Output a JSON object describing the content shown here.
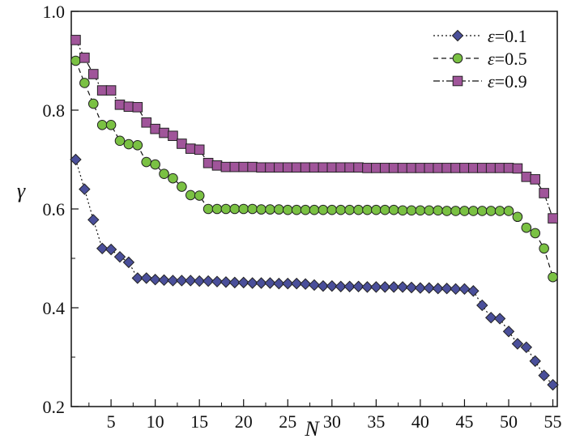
{
  "chart_data": {
    "type": "line",
    "title": "",
    "xlabel": "N",
    "ylabel": "γ",
    "xlim": [
      0.5,
      55.5
    ],
    "ylim": [
      0.2,
      1.0
    ],
    "xticks": [
      5,
      10,
      15,
      20,
      25,
      30,
      35,
      40,
      45,
      50,
      55
    ],
    "xtick_labels": [
      "5",
      "10",
      "15",
      "20",
      "25",
      "30",
      "35",
      "40",
      "45",
      "50",
      "55"
    ],
    "yticks": [
      0.2,
      0.4,
      0.6,
      0.8,
      1.0
    ],
    "ytick_labels": [
      "0.2",
      "0.4",
      "0.6",
      "0.8",
      "1.0"
    ],
    "grid": false,
    "legend_position": "top-right",
    "x": [
      1,
      2,
      3,
      4,
      5,
      6,
      7,
      8,
      9,
      10,
      11,
      12,
      13,
      14,
      15,
      16,
      17,
      18,
      19,
      20,
      21,
      22,
      23,
      24,
      25,
      26,
      27,
      28,
      29,
      30,
      31,
      32,
      33,
      34,
      35,
      36,
      37,
      38,
      39,
      40,
      41,
      42,
      43,
      44,
      45,
      46,
      47,
      48,
      49,
      50,
      51,
      52,
      53,
      54,
      55
    ],
    "series": [
      {
        "name": "ε=0.1",
        "legend_prefix": "ε",
        "legend_suffix": "=0.1",
        "marker": "diamond",
        "line_style": "dotted",
        "color": "#4a4f9a",
        "values": [
          0.7,
          0.64,
          0.578,
          0.52,
          0.518,
          0.503,
          0.492,
          0.46,
          0.46,
          0.457,
          0.456,
          0.455,
          0.455,
          0.455,
          0.454,
          0.454,
          0.453,
          0.452,
          0.451,
          0.451,
          0.45,
          0.45,
          0.45,
          0.449,
          0.449,
          0.449,
          0.448,
          0.446,
          0.444,
          0.444,
          0.443,
          0.443,
          0.443,
          0.442,
          0.442,
          0.442,
          0.442,
          0.442,
          0.441,
          0.44,
          0.44,
          0.439,
          0.439,
          0.438,
          0.438,
          0.434,
          0.405,
          0.38,
          0.378,
          0.352,
          0.327,
          0.32,
          0.292,
          0.263,
          0.244
        ]
      },
      {
        "name": "ε=0.5",
        "legend_prefix": "ε",
        "legend_suffix": "=0.5",
        "marker": "circle",
        "line_style": "dashed",
        "color": "#7ac143",
        "values": [
          0.9,
          0.855,
          0.813,
          0.77,
          0.77,
          0.738,
          0.731,
          0.729,
          0.695,
          0.69,
          0.671,
          0.662,
          0.645,
          0.628,
          0.627,
          0.6,
          0.6,
          0.6,
          0.6,
          0.6,
          0.6,
          0.599,
          0.599,
          0.599,
          0.598,
          0.598,
          0.598,
          0.598,
          0.598,
          0.598,
          0.598,
          0.598,
          0.598,
          0.598,
          0.598,
          0.598,
          0.598,
          0.597,
          0.597,
          0.597,
          0.597,
          0.597,
          0.596,
          0.596,
          0.596,
          0.596,
          0.596,
          0.596,
          0.596,
          0.596,
          0.584,
          0.562,
          0.551,
          0.52,
          0.462
        ]
      },
      {
        "name": "ε=0.9",
        "legend_prefix": "ε",
        "legend_suffix": "=0.9",
        "marker": "square",
        "line_style": "dashdot",
        "color": "#a0559a",
        "values": [
          0.942,
          0.906,
          0.873,
          0.84,
          0.84,
          0.811,
          0.807,
          0.806,
          0.775,
          0.762,
          0.754,
          0.748,
          0.732,
          0.722,
          0.72,
          0.693,
          0.688,
          0.685,
          0.685,
          0.685,
          0.685,
          0.684,
          0.684,
          0.684,
          0.684,
          0.684,
          0.684,
          0.684,
          0.684,
          0.684,
          0.684,
          0.684,
          0.684,
          0.683,
          0.683,
          0.683,
          0.683,
          0.683,
          0.683,
          0.683,
          0.683,
          0.683,
          0.683,
          0.683,
          0.683,
          0.683,
          0.683,
          0.683,
          0.683,
          0.683,
          0.682,
          0.665,
          0.66,
          0.632,
          0.581
        ]
      }
    ]
  }
}
